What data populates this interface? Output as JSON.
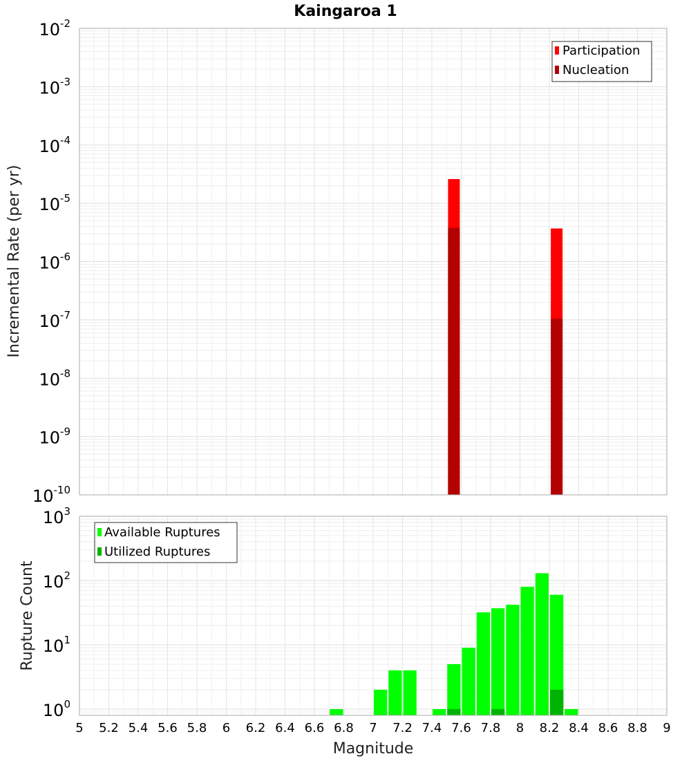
{
  "chart_data": [
    {
      "type": "bar",
      "title": "Kaingaroa 1",
      "xlabel": "",
      "ylabel": "Incremental Rate (per yr)",
      "xlim": [
        5,
        9
      ],
      "ylim": [
        1e-10,
        0.01
      ],
      "yscale": "log",
      "grid": true,
      "legend_position": "top-right",
      "bar_width": 0.08,
      "series": [
        {
          "name": "Participation",
          "color": "#ff0000",
          "x": [
            7.55,
            8.25
          ],
          "values": [
            2.6e-05,
            3.7e-06
          ]
        },
        {
          "name": "Nucleation",
          "color": "#b30000",
          "x": [
            7.55,
            8.25
          ],
          "values": [
            3.8e-06,
            1.05e-07
          ]
        }
      ],
      "y_ticks": [
        {
          "base": "10",
          "exp": "-10"
        },
        {
          "base": "10",
          "exp": "-9"
        },
        {
          "base": "10",
          "exp": "-8"
        },
        {
          "base": "10",
          "exp": "-7"
        },
        {
          "base": "10",
          "exp": "-6"
        },
        {
          "base": "10",
          "exp": "-5"
        },
        {
          "base": "10",
          "exp": "-4"
        },
        {
          "base": "10",
          "exp": "-3"
        },
        {
          "base": "10",
          "exp": "-2"
        }
      ]
    },
    {
      "type": "bar",
      "xlabel": "Magnitude",
      "ylabel": "Rupture Count",
      "xlim": [
        5,
        9
      ],
      "ylim": [
        0.8,
        1000
      ],
      "yscale": "log",
      "grid": true,
      "legend_position": "top-left",
      "bar_width": 0.1,
      "series": [
        {
          "name": "Available Ruptures",
          "color": "#00ff00",
          "x": [
            6.75,
            7.05,
            7.15,
            7.25,
            7.45,
            7.55,
            7.65,
            7.75,
            7.85,
            7.95,
            8.05,
            8.15,
            8.25,
            8.35
          ],
          "values": [
            1,
            2,
            4,
            4,
            1,
            5,
            9,
            32,
            37,
            42,
            80,
            130,
            60,
            1
          ]
        },
        {
          "name": "Utilized Ruptures",
          "color": "#00b300",
          "x": [
            7.55,
            7.85,
            8.25
          ],
          "values": [
            1,
            1,
            2
          ]
        }
      ],
      "y_ticks": [
        {
          "base": "10",
          "exp": "0"
        },
        {
          "base": "10",
          "exp": "1"
        },
        {
          "base": "10",
          "exp": "2"
        },
        {
          "base": "10",
          "exp": "3"
        }
      ],
      "x_ticks": [
        "5",
        "5.2",
        "5.4",
        "5.6",
        "5.8",
        "6",
        "6.2",
        "6.4",
        "6.6",
        "6.8",
        "7",
        "7.2",
        "7.4",
        "7.6",
        "7.8",
        "8",
        "8.2",
        "8.4",
        "8.6",
        "8.8",
        "9"
      ]
    }
  ]
}
